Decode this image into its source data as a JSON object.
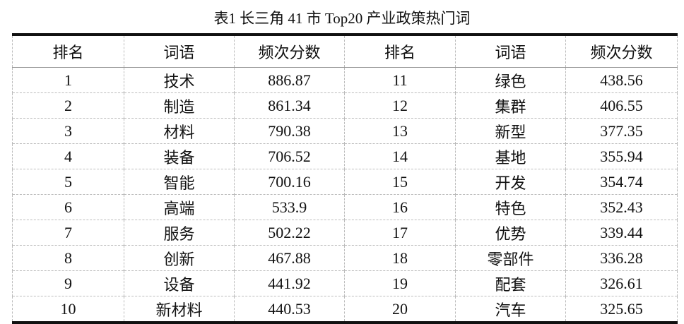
{
  "title": "表1  长三角 41 市 Top20 产业政策热门词",
  "headers": [
    "排名",
    "词语",
    "频次分数",
    "排名",
    "词语",
    "频次分数"
  ],
  "rows": [
    [
      "1",
      "技术",
      "886.87",
      "11",
      "绿色",
      "438.56"
    ],
    [
      "2",
      "制造",
      "861.34",
      "12",
      "集群",
      "406.55"
    ],
    [
      "3",
      "材料",
      "790.38",
      "13",
      "新型",
      "377.35"
    ],
    [
      "4",
      "装备",
      "706.52",
      "14",
      "基地",
      "355.94"
    ],
    [
      "5",
      "智能",
      "700.16",
      "15",
      "开发",
      "354.74"
    ],
    [
      "6",
      "高端",
      "533.9",
      "16",
      "特色",
      "352.43"
    ],
    [
      "7",
      "服务",
      "502.22",
      "17",
      "优势",
      "339.44"
    ],
    [
      "8",
      "创新",
      "467.88",
      "18",
      "零部件",
      "336.28"
    ],
    [
      "9",
      "设备",
      "441.92",
      "19",
      "配套",
      "326.61"
    ],
    [
      "10",
      "新材料",
      "440.53",
      "20",
      "汽车",
      "325.65"
    ]
  ]
}
